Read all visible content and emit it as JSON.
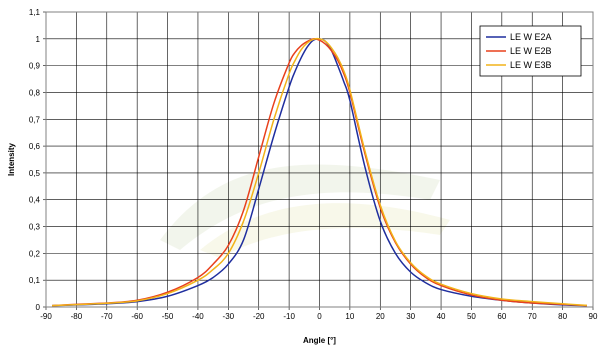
{
  "chart_data": {
    "type": "line",
    "title": "",
    "xlabel": "Angle [°]",
    "ylabel": "Intensity",
    "xlim": [
      -90,
      90
    ],
    "ylim": [
      0,
      1.1
    ],
    "x_ticks": [
      -90,
      -80,
      -70,
      -60,
      -50,
      -40,
      -30,
      -20,
      -10,
      0,
      10,
      20,
      30,
      40,
      50,
      60,
      70,
      80,
      90
    ],
    "y_ticks": [
      0,
      0.1,
      0.2,
      0.3,
      0.4,
      0.5,
      0.6,
      0.7,
      0.8,
      0.9,
      1,
      1.1
    ],
    "y_tick_labels": [
      "0",
      "0,1",
      "0,2",
      "0,3",
      "0,4",
      "0,5",
      "0,6",
      "0,7",
      "0,8",
      "0,9",
      "1",
      "1,1"
    ],
    "grid": true,
    "legend_position": "top-right",
    "series": [
      {
        "name": "LE W E2A",
        "color": "#1f2e9e",
        "x": [
          -88,
          -80,
          -70,
          -60,
          -50,
          -40,
          -35,
          -30,
          -25,
          -20,
          -15,
          -10,
          -8,
          -6,
          -4,
          -2,
          0,
          2,
          4,
          6,
          8,
          10,
          15,
          20,
          25,
          30,
          35,
          40,
          50,
          60,
          70,
          80,
          88
        ],
        "y": [
          0.005,
          0.008,
          0.012,
          0.02,
          0.04,
          0.08,
          0.11,
          0.16,
          0.25,
          0.44,
          0.64,
          0.82,
          0.88,
          0.93,
          0.97,
          0.995,
          1.0,
          0.99,
          0.955,
          0.9,
          0.84,
          0.77,
          0.52,
          0.32,
          0.2,
          0.13,
          0.09,
          0.065,
          0.04,
          0.025,
          0.015,
          0.008,
          0.005
        ]
      },
      {
        "name": "LE W E2B",
        "color": "#e8401c",
        "x": [
          -88,
          -80,
          -70,
          -60,
          -50,
          -40,
          -35,
          -30,
          -25,
          -20,
          -15,
          -10,
          -8,
          -6,
          -4,
          -2,
          0,
          2,
          4,
          6,
          8,
          10,
          15,
          20,
          25,
          30,
          35,
          40,
          50,
          60,
          70,
          80,
          88
        ],
        "y": [
          0.005,
          0.01,
          0.015,
          0.025,
          0.055,
          0.11,
          0.16,
          0.23,
          0.36,
          0.56,
          0.76,
          0.91,
          0.95,
          0.975,
          0.99,
          1.0,
          0.995,
          0.98,
          0.955,
          0.92,
          0.87,
          0.8,
          0.57,
          0.37,
          0.24,
          0.16,
          0.11,
          0.08,
          0.045,
          0.025,
          0.015,
          0.01,
          0.005
        ]
      },
      {
        "name": "LE W E3B",
        "color": "#f2b31a",
        "x": [
          -88,
          -80,
          -70,
          -60,
          -50,
          -40,
          -35,
          -30,
          -25,
          -20,
          -15,
          -10,
          -8,
          -6,
          -4,
          -2,
          0,
          2,
          4,
          6,
          8,
          10,
          15,
          20,
          25,
          30,
          35,
          40,
          50,
          60,
          70,
          80,
          88
        ],
        "y": [
          0.005,
          0.009,
          0.014,
          0.023,
          0.05,
          0.1,
          0.14,
          0.2,
          0.32,
          0.5,
          0.7,
          0.87,
          0.92,
          0.96,
          0.985,
          0.998,
          1.0,
          0.99,
          0.965,
          0.93,
          0.88,
          0.81,
          0.58,
          0.38,
          0.245,
          0.165,
          0.115,
          0.085,
          0.05,
          0.03,
          0.02,
          0.012,
          0.006
        ]
      }
    ]
  }
}
